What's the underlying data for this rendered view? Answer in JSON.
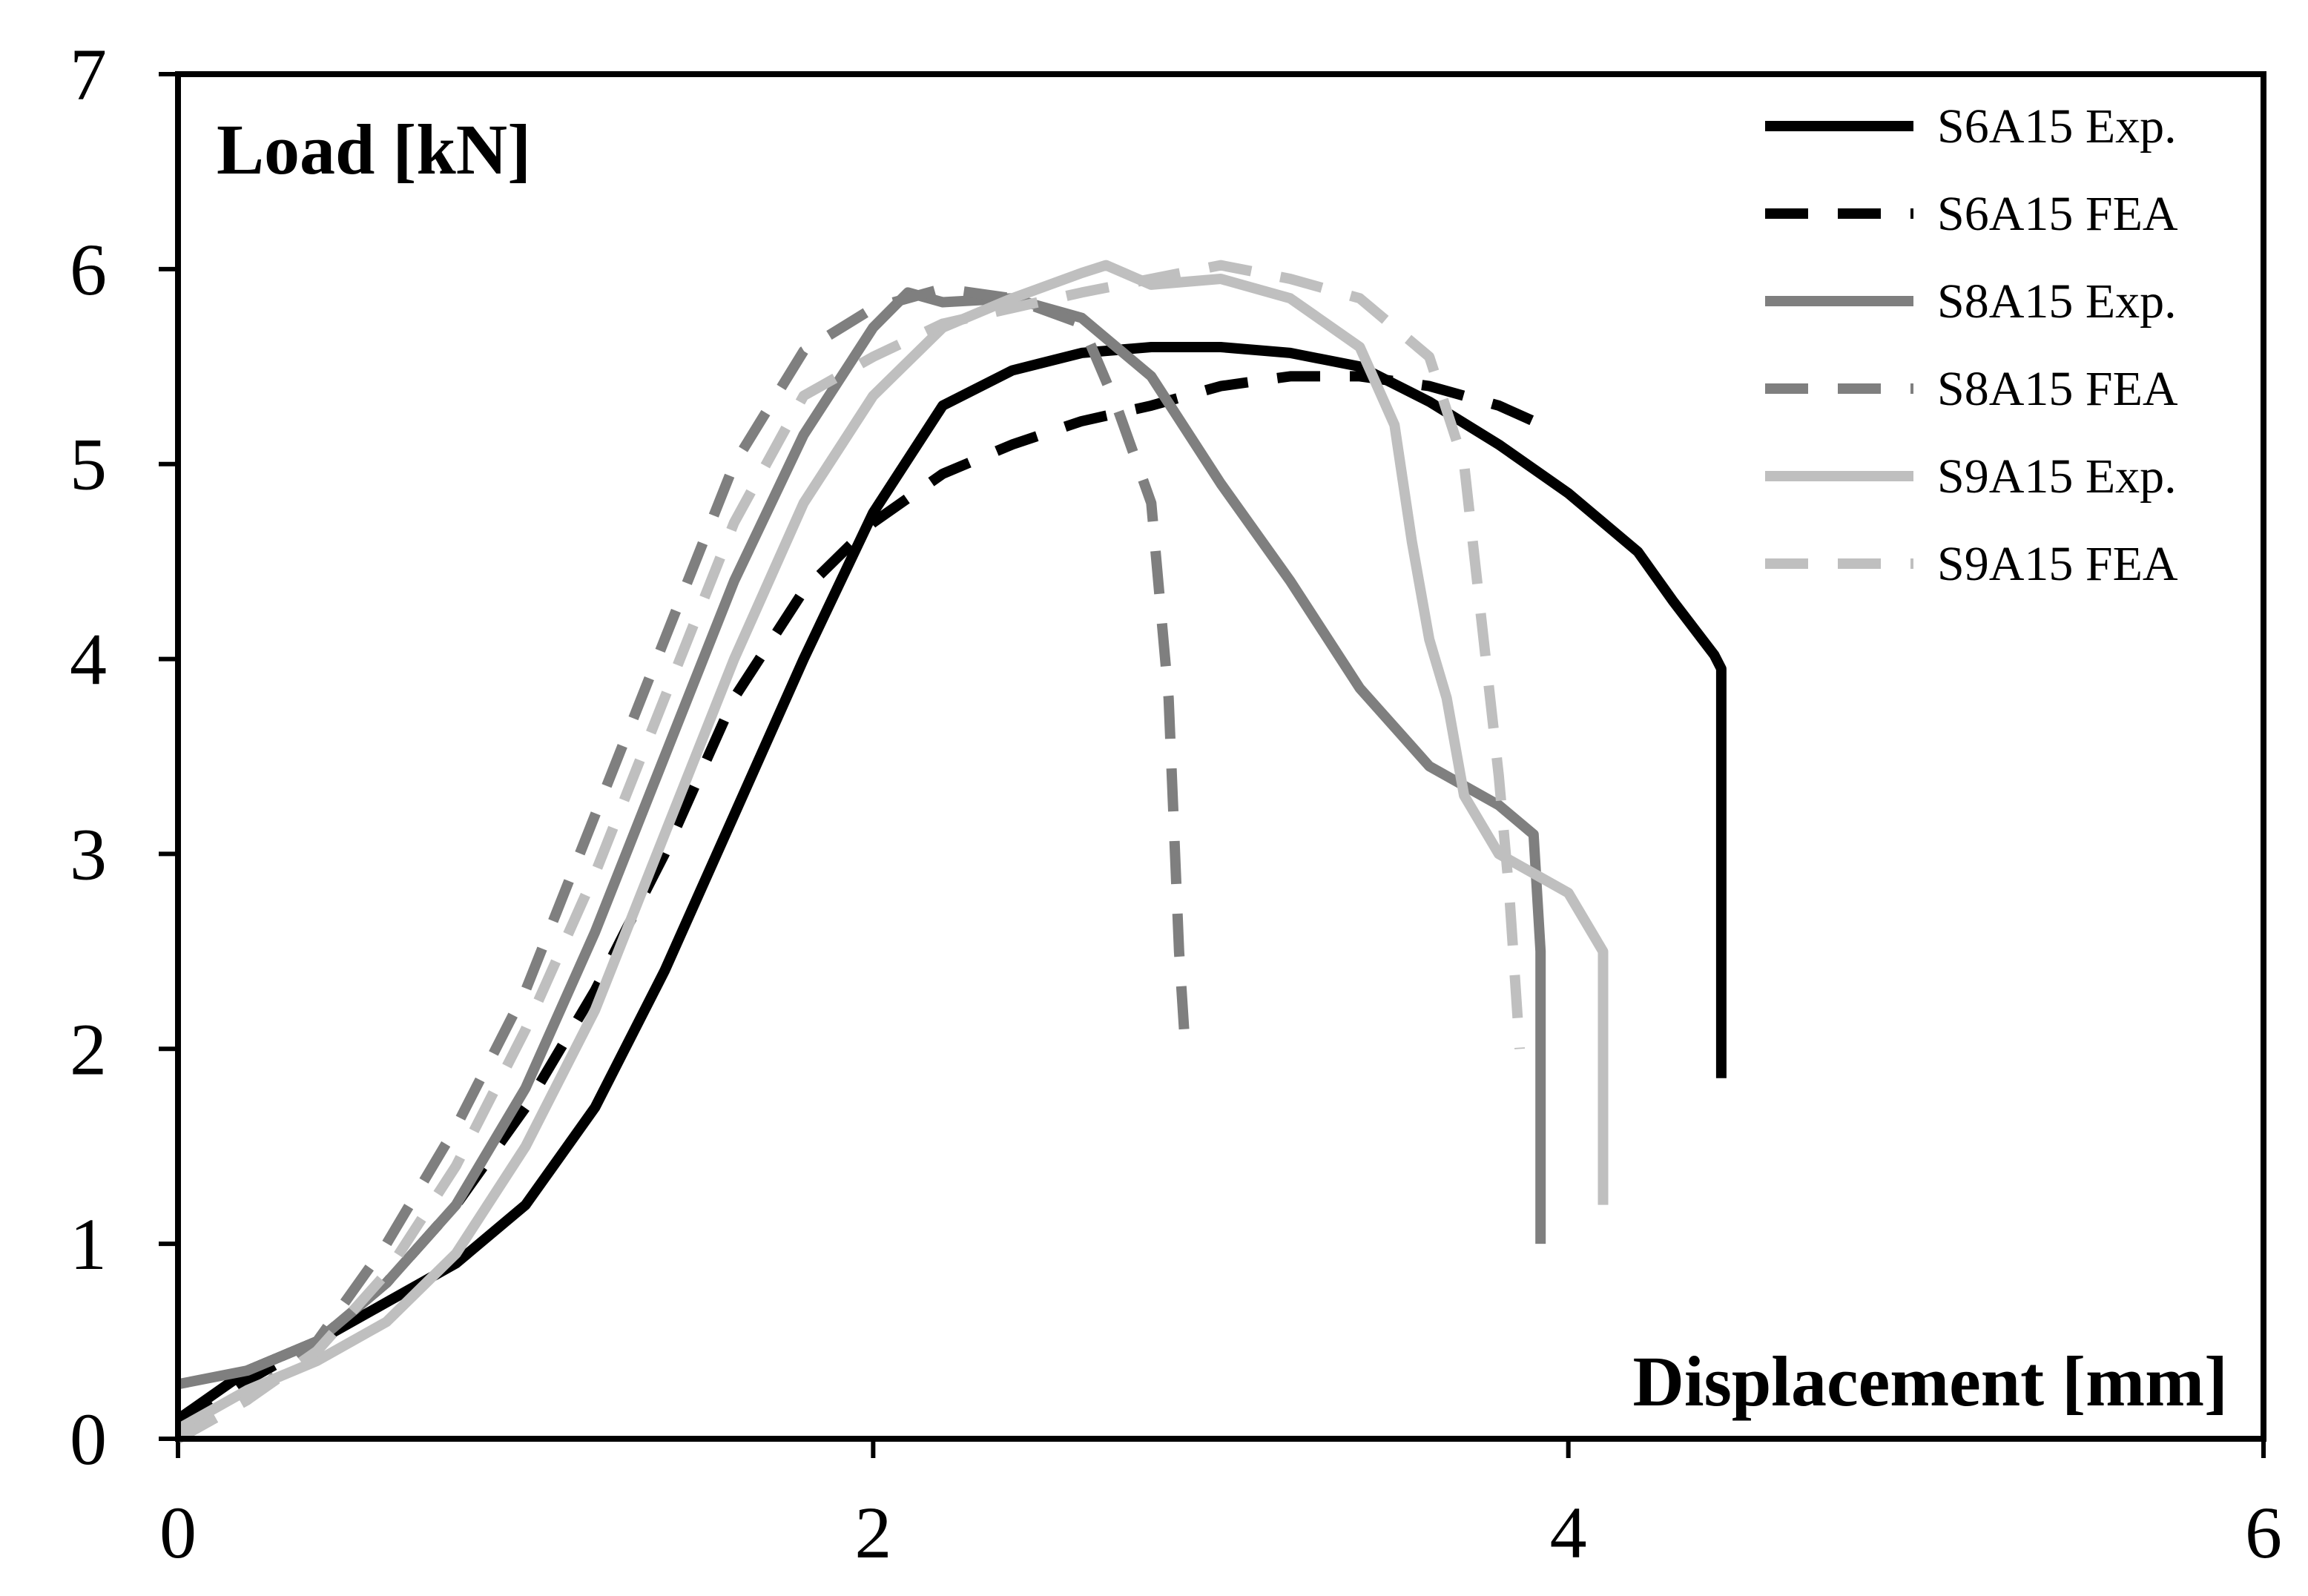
{
  "chart_data": {
    "type": "line",
    "title": "",
    "xlabel": "Displacement [mm]",
    "ylabel": "Load [kN]",
    "xlim": [
      0,
      6
    ],
    "ylim": [
      0,
      7
    ],
    "xticks": [
      0,
      2,
      4,
      6
    ],
    "yticks": [
      0,
      1,
      2,
      3,
      4,
      5,
      6,
      7
    ],
    "grid": false,
    "legend_position": "top-right",
    "series": [
      {
        "name": "S6A15 Exp.",
        "color": "#000000",
        "dash": "solid",
        "points": [
          [
            0,
            0.1
          ],
          [
            0.2,
            0.35
          ],
          [
            0.4,
            0.5
          ],
          [
            0.6,
            0.7
          ],
          [
            0.8,
            0.9
          ],
          [
            1.0,
            1.2
          ],
          [
            1.2,
            1.7
          ],
          [
            1.4,
            2.4
          ],
          [
            1.6,
            3.2
          ],
          [
            1.8,
            4.0
          ],
          [
            2.0,
            4.75
          ],
          [
            2.2,
            5.3
          ],
          [
            2.4,
            5.48
          ],
          [
            2.6,
            5.57
          ],
          [
            2.8,
            5.6
          ],
          [
            3.0,
            5.6
          ],
          [
            3.2,
            5.57
          ],
          [
            3.4,
            5.5
          ],
          [
            3.6,
            5.32
          ],
          [
            3.8,
            5.1
          ],
          [
            4.0,
            4.85
          ],
          [
            4.2,
            4.55
          ],
          [
            4.3,
            4.3
          ],
          [
            4.42,
            4.02
          ],
          [
            4.44,
            3.95
          ],
          [
            4.44,
            1.85
          ]
        ]
      },
      {
        "name": "S6A15 FEA",
        "color": "#000000",
        "dash": "dashed",
        "points": [
          [
            0,
            0.05
          ],
          [
            0.2,
            0.3
          ],
          [
            0.4,
            0.5
          ],
          [
            0.6,
            0.8
          ],
          [
            0.8,
            1.2
          ],
          [
            1.0,
            1.7
          ],
          [
            1.2,
            2.3
          ],
          [
            1.4,
            3.0
          ],
          [
            1.6,
            3.8
          ],
          [
            1.8,
            4.35
          ],
          [
            2.0,
            4.7
          ],
          [
            2.2,
            4.95
          ],
          [
            2.4,
            5.1
          ],
          [
            2.6,
            5.22
          ],
          [
            2.8,
            5.3
          ],
          [
            3.0,
            5.4
          ],
          [
            3.2,
            5.45
          ],
          [
            3.4,
            5.45
          ],
          [
            3.6,
            5.4
          ],
          [
            3.8,
            5.3
          ],
          [
            3.9,
            5.22
          ]
        ]
      },
      {
        "name": "S8A15 Exp.",
        "color": "#7f7f7f",
        "dash": "solid",
        "points": [
          [
            0,
            0.28
          ],
          [
            0.2,
            0.35
          ],
          [
            0.4,
            0.5
          ],
          [
            0.6,
            0.8
          ],
          [
            0.8,
            1.2
          ],
          [
            1.0,
            1.8
          ],
          [
            1.2,
            2.6
          ],
          [
            1.4,
            3.5
          ],
          [
            1.6,
            4.4
          ],
          [
            1.8,
            5.15
          ],
          [
            2.0,
            5.7
          ],
          [
            2.1,
            5.88
          ],
          [
            2.2,
            5.83
          ],
          [
            2.4,
            5.85
          ],
          [
            2.6,
            5.75
          ],
          [
            2.8,
            5.45
          ],
          [
            3.0,
            4.9
          ],
          [
            3.2,
            4.4
          ],
          [
            3.4,
            3.85
          ],
          [
            3.6,
            3.45
          ],
          [
            3.8,
            3.25
          ],
          [
            3.9,
            3.1
          ],
          [
            3.92,
            2.5
          ],
          [
            3.92,
            1.0
          ]
        ]
      },
      {
        "name": "S8A15 FEA",
        "color": "#7f7f7f",
        "dash": "dashed",
        "points": [
          [
            0,
            0
          ],
          [
            0.2,
            0.2
          ],
          [
            0.4,
            0.5
          ],
          [
            0.6,
            1.0
          ],
          [
            0.8,
            1.6
          ],
          [
            1.0,
            2.3
          ],
          [
            1.2,
            3.2
          ],
          [
            1.4,
            4.1
          ],
          [
            1.6,
            5.0
          ],
          [
            1.8,
            5.58
          ],
          [
            2.0,
            5.8
          ],
          [
            2.2,
            5.9
          ],
          [
            2.4,
            5.85
          ],
          [
            2.6,
            5.72
          ],
          [
            2.7,
            5.3
          ],
          [
            2.8,
            4.8
          ],
          [
            2.85,
            3.8
          ],
          [
            2.88,
            2.5
          ],
          [
            2.9,
            1.95
          ]
        ]
      },
      {
        "name": "S9A15 Exp.",
        "color": "#bfbfbf",
        "dash": "solid",
        "points": [
          [
            0,
            0.05
          ],
          [
            0.2,
            0.25
          ],
          [
            0.4,
            0.4
          ],
          [
            0.6,
            0.6
          ],
          [
            0.8,
            0.95
          ],
          [
            1.0,
            1.5
          ],
          [
            1.2,
            2.2
          ],
          [
            1.4,
            3.1
          ],
          [
            1.6,
            4.0
          ],
          [
            1.8,
            4.8
          ],
          [
            2.0,
            5.35
          ],
          [
            2.2,
            5.7
          ],
          [
            2.4,
            5.85
          ],
          [
            2.6,
            5.98
          ],
          [
            2.67,
            6.02
          ],
          [
            2.8,
            5.92
          ],
          [
            3.0,
            5.95
          ],
          [
            3.2,
            5.85
          ],
          [
            3.4,
            5.6
          ],
          [
            3.5,
            5.2
          ],
          [
            3.55,
            4.6
          ],
          [
            3.6,
            4.1
          ],
          [
            3.65,
            3.8
          ],
          [
            3.7,
            3.3
          ],
          [
            3.8,
            3.0
          ],
          [
            4.0,
            2.8
          ],
          [
            4.1,
            2.5
          ],
          [
            4.1,
            1.2
          ]
        ]
      },
      {
        "name": "S9A15 FEA",
        "color": "#bfbfbf",
        "dash": "dashed",
        "points": [
          [
            0,
            0
          ],
          [
            0.2,
            0.2
          ],
          [
            0.4,
            0.45
          ],
          [
            0.6,
            0.85
          ],
          [
            0.8,
            1.4
          ],
          [
            1.0,
            2.1
          ],
          [
            1.2,
            2.9
          ],
          [
            1.4,
            3.8
          ],
          [
            1.6,
            4.7
          ],
          [
            1.8,
            5.35
          ],
          [
            2.0,
            5.55
          ],
          [
            2.2,
            5.72
          ],
          [
            2.4,
            5.8
          ],
          [
            2.6,
            5.88
          ],
          [
            2.8,
            5.95
          ],
          [
            3.0,
            6.02
          ],
          [
            3.2,
            5.95
          ],
          [
            3.4,
            5.85
          ],
          [
            3.6,
            5.55
          ],
          [
            3.7,
            5.0
          ],
          [
            3.75,
            4.2
          ],
          [
            3.8,
            3.4
          ],
          [
            3.83,
            2.8
          ],
          [
            3.86,
            2.0
          ]
        ]
      }
    ]
  }
}
